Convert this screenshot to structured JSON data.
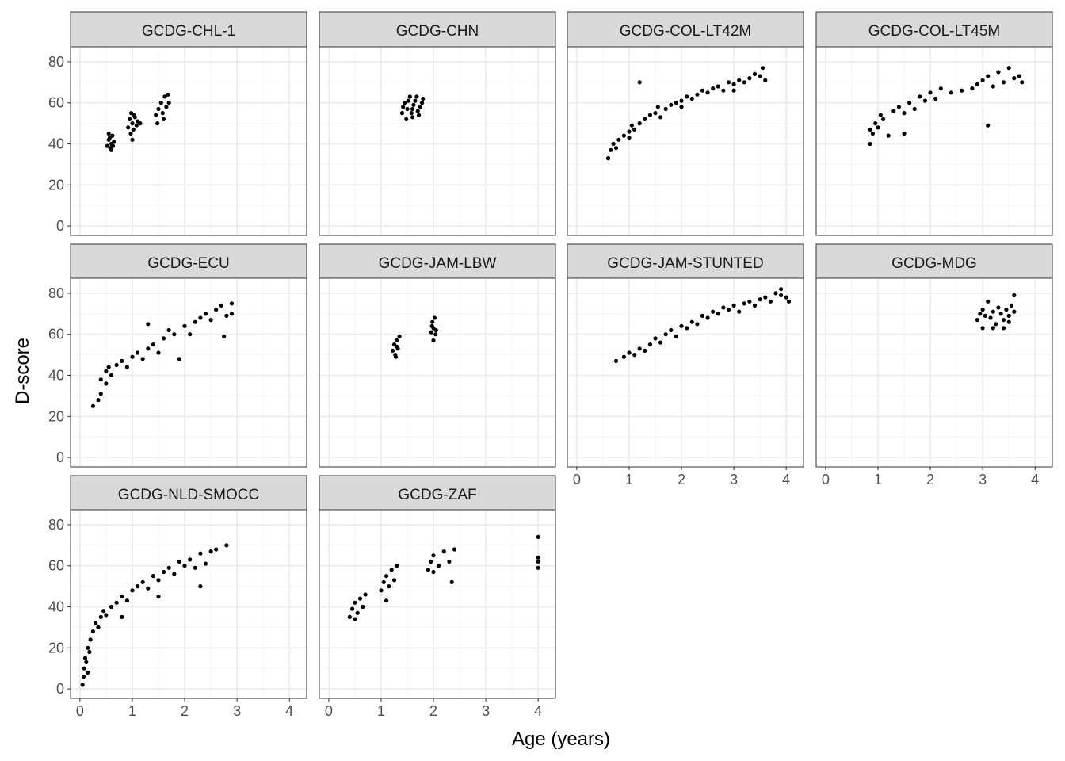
{
  "chart_data": {
    "type": "scatter",
    "layout": "faceted grid, 4 columns",
    "xlabel": "Age (years)",
    "ylabel": "D-score",
    "xlim": [
      -0.18,
      4.33
    ],
    "ylim": [
      -4.6,
      87.3
    ],
    "xticks": [
      0,
      1,
      2,
      3,
      4
    ],
    "yticks": [
      0,
      20,
      40,
      60,
      80
    ],
    "grid": true,
    "theme": "bw",
    "colors": {
      "point": "#000000",
      "strip": "#D9D9D9",
      "grid_major": "#EBEBEB",
      "grid_minor": "#F5F5F5",
      "border": "#333333"
    },
    "panels": [
      {
        "title": "GCDG-CHL-1",
        "points": [
          [
            0.52,
            39
          ],
          [
            0.55,
            42
          ],
          [
            0.58,
            38
          ],
          [
            0.6,
            40
          ],
          [
            0.62,
            44
          ],
          [
            0.55,
            45
          ],
          [
            0.6,
            37
          ],
          [
            0.65,
            41
          ],
          [
            0.57,
            43
          ],
          [
            0.63,
            39
          ],
          [
            0.92,
            48
          ],
          [
            0.95,
            52
          ],
          [
            0.98,
            55
          ],
          [
            1.0,
            50
          ],
          [
            1.02,
            47
          ],
          [
            1.05,
            53
          ],
          [
            1.08,
            49
          ],
          [
            1.1,
            51
          ],
          [
            1.0,
            42
          ],
          [
            0.97,
            45
          ],
          [
            1.15,
            50
          ],
          [
            1.03,
            54
          ],
          [
            1.45,
            54
          ],
          [
            1.5,
            57
          ],
          [
            1.55,
            60
          ],
          [
            1.6,
            52
          ],
          [
            1.62,
            63
          ],
          [
            1.65,
            58
          ],
          [
            1.7,
            60
          ],
          [
            1.48,
            50
          ],
          [
            1.58,
            55
          ],
          [
            1.68,
            64
          ]
        ]
      },
      {
        "title": "GCDG-CHN",
        "points": [
          [
            1.4,
            55
          ],
          [
            1.45,
            60
          ],
          [
            1.5,
            57
          ],
          [
            1.55,
            63
          ],
          [
            1.6,
            53
          ],
          [
            1.62,
            59
          ],
          [
            1.65,
            61
          ],
          [
            1.7,
            56
          ],
          [
            1.75,
            58
          ],
          [
            1.8,
            62
          ],
          [
            1.48,
            52
          ],
          [
            1.58,
            55
          ],
          [
            1.68,
            63
          ],
          [
            1.52,
            61
          ],
          [
            1.72,
            54
          ],
          [
            1.42,
            58
          ],
          [
            1.78,
            60
          ],
          [
            1.6,
            57
          ]
        ]
      },
      {
        "title": "GCDG-COL-LT42M",
        "points": [
          [
            0.6,
            33
          ],
          [
            0.65,
            37
          ],
          [
            0.7,
            40
          ],
          [
            0.75,
            38
          ],
          [
            0.8,
            42
          ],
          [
            0.9,
            44
          ],
          [
            1.0,
            46
          ],
          [
            1.05,
            49
          ],
          [
            1.1,
            47
          ],
          [
            1.2,
            50
          ],
          [
            1.3,
            52
          ],
          [
            1.4,
            54
          ],
          [
            1.5,
            55
          ],
          [
            1.55,
            58
          ],
          [
            1.6,
            53
          ],
          [
            1.7,
            57
          ],
          [
            1.8,
            59
          ],
          [
            1.9,
            60
          ],
          [
            2.0,
            61
          ],
          [
            2.1,
            63
          ],
          [
            2.2,
            62
          ],
          [
            2.3,
            64
          ],
          [
            2.4,
            66
          ],
          [
            2.5,
            65
          ],
          [
            2.6,
            67
          ],
          [
            2.7,
            68
          ],
          [
            2.8,
            66
          ],
          [
            2.9,
            70
          ],
          [
            3.0,
            69
          ],
          [
            3.1,
            71
          ],
          [
            3.2,
            70
          ],
          [
            3.3,
            72
          ],
          [
            3.4,
            74
          ],
          [
            3.5,
            73
          ],
          [
            3.55,
            77
          ],
          [
            3.6,
            71
          ],
          [
            1.2,
            70
          ],
          [
            1.0,
            43
          ],
          [
            2.0,
            58
          ],
          [
            3.0,
            66
          ]
        ]
      },
      {
        "title": "GCDG-COL-LT45M",
        "points": [
          [
            0.85,
            40
          ],
          [
            0.85,
            47
          ],
          [
            0.9,
            45
          ],
          [
            0.95,
            50
          ],
          [
            1.0,
            48
          ],
          [
            1.05,
            54
          ],
          [
            1.1,
            52
          ],
          [
            1.2,
            44
          ],
          [
            1.3,
            56
          ],
          [
            1.4,
            58
          ],
          [
            1.5,
            55
          ],
          [
            1.6,
            60
          ],
          [
            1.7,
            57
          ],
          [
            1.8,
            63
          ],
          [
            1.9,
            61
          ],
          [
            2.0,
            65
          ],
          [
            2.1,
            62
          ],
          [
            2.2,
            67
          ],
          [
            2.4,
            65
          ],
          [
            2.6,
            66
          ],
          [
            2.8,
            67
          ],
          [
            2.9,
            69
          ],
          [
            3.0,
            71
          ],
          [
            3.1,
            49
          ],
          [
            3.1,
            73
          ],
          [
            3.2,
            68
          ],
          [
            3.3,
            75
          ],
          [
            3.4,
            70
          ],
          [
            3.5,
            77
          ],
          [
            3.6,
            72
          ],
          [
            3.7,
            73
          ],
          [
            3.75,
            70
          ],
          [
            1.5,
            45
          ]
        ]
      },
      {
        "title": "GCDG-ECU",
        "points": [
          [
            0.25,
            25
          ],
          [
            0.35,
            28
          ],
          [
            0.4,
            31
          ],
          [
            0.4,
            38
          ],
          [
            0.5,
            36
          ],
          [
            0.5,
            42
          ],
          [
            0.55,
            44
          ],
          [
            0.6,
            40
          ],
          [
            0.7,
            45
          ],
          [
            0.8,
            47
          ],
          [
            0.9,
            44
          ],
          [
            1.0,
            49
          ],
          [
            1.1,
            51
          ],
          [
            1.2,
            48
          ],
          [
            1.3,
            53
          ],
          [
            1.4,
            55
          ],
          [
            1.5,
            51
          ],
          [
            1.6,
            58
          ],
          [
            1.7,
            62
          ],
          [
            1.8,
            60
          ],
          [
            1.9,
            48
          ],
          [
            2.0,
            64
          ],
          [
            2.1,
            60
          ],
          [
            2.2,
            66
          ],
          [
            2.3,
            68
          ],
          [
            2.4,
            70
          ],
          [
            2.5,
            67
          ],
          [
            2.6,
            72
          ],
          [
            2.7,
            74
          ],
          [
            2.8,
            69
          ],
          [
            2.9,
            70
          ],
          [
            2.9,
            75
          ],
          [
            2.75,
            59
          ],
          [
            1.3,
            65
          ]
        ]
      },
      {
        "title": "GCDG-JAM-LBW",
        "points": [
          [
            1.22,
            52
          ],
          [
            1.25,
            55
          ],
          [
            1.27,
            50
          ],
          [
            1.3,
            57
          ],
          [
            1.32,
            53
          ],
          [
            1.35,
            59
          ],
          [
            1.28,
            49
          ],
          [
            1.3,
            54
          ],
          [
            1.96,
            61
          ],
          [
            1.98,
            66
          ],
          [
            2.0,
            63
          ],
          [
            2.02,
            68
          ],
          [
            2.04,
            60
          ],
          [
            2.0,
            57
          ],
          [
            1.97,
            64
          ],
          [
            2.05,
            62
          ]
        ]
      },
      {
        "title": "GCDG-JAM-STUNTED",
        "points": [
          [
            0.75,
            47
          ],
          [
            0.9,
            49
          ],
          [
            1.0,
            51
          ],
          [
            1.1,
            50
          ],
          [
            1.2,
            53
          ],
          [
            1.3,
            52
          ],
          [
            1.4,
            55
          ],
          [
            1.5,
            58
          ],
          [
            1.6,
            56
          ],
          [
            1.7,
            60
          ],
          [
            1.8,
            62
          ],
          [
            1.9,
            59
          ],
          [
            2.0,
            64
          ],
          [
            2.1,
            63
          ],
          [
            2.2,
            66
          ],
          [
            2.3,
            65
          ],
          [
            2.4,
            69
          ],
          [
            2.5,
            68
          ],
          [
            2.6,
            71
          ],
          [
            2.7,
            70
          ],
          [
            2.8,
            73
          ],
          [
            2.9,
            72
          ],
          [
            3.0,
            74
          ],
          [
            3.1,
            71
          ],
          [
            3.2,
            75
          ],
          [
            3.3,
            76
          ],
          [
            3.4,
            74
          ],
          [
            3.5,
            77
          ],
          [
            3.6,
            78
          ],
          [
            3.7,
            76
          ],
          [
            3.8,
            80
          ],
          [
            3.9,
            79
          ],
          [
            4.0,
            78
          ],
          [
            3.9,
            82
          ],
          [
            4.05,
            76
          ]
        ]
      },
      {
        "title": "GCDG-MDG",
        "points": [
          [
            2.9,
            67
          ],
          [
            2.95,
            70
          ],
          [
            3.0,
            72
          ],
          [
            3.0,
            63
          ],
          [
            3.05,
            69
          ],
          [
            3.1,
            76
          ],
          [
            3.15,
            68
          ],
          [
            3.2,
            71
          ],
          [
            3.25,
            65
          ],
          [
            3.3,
            73
          ],
          [
            3.35,
            70
          ],
          [
            3.4,
            67
          ],
          [
            3.45,
            72
          ],
          [
            3.5,
            69
          ],
          [
            3.55,
            74
          ],
          [
            3.6,
            79
          ],
          [
            3.6,
            71
          ],
          [
            3.2,
            63
          ],
          [
            3.4,
            63
          ],
          [
            3.5,
            66
          ]
        ]
      },
      {
        "title": "GCDG-NLD-SMOCC",
        "points": [
          [
            0.05,
            2
          ],
          [
            0.07,
            6
          ],
          [
            0.08,
            10
          ],
          [
            0.1,
            15
          ],
          [
            0.12,
            13
          ],
          [
            0.15,
            20
          ],
          [
            0.18,
            18
          ],
          [
            0.2,
            24
          ],
          [
            0.25,
            28
          ],
          [
            0.3,
            32
          ],
          [
            0.35,
            30
          ],
          [
            0.4,
            35
          ],
          [
            0.45,
            38
          ],
          [
            0.5,
            36
          ],
          [
            0.6,
            40
          ],
          [
            0.7,
            42
          ],
          [
            0.8,
            45
          ],
          [
            0.9,
            43
          ],
          [
            1.0,
            48
          ],
          [
            1.1,
            50
          ],
          [
            1.2,
            52
          ],
          [
            1.3,
            49
          ],
          [
            1.4,
            55
          ],
          [
            1.5,
            53
          ],
          [
            1.6,
            57
          ],
          [
            1.7,
            59
          ],
          [
            1.8,
            56
          ],
          [
            1.9,
            62
          ],
          [
            2.0,
            60
          ],
          [
            2.1,
            63
          ],
          [
            2.2,
            59
          ],
          [
            2.3,
            66
          ],
          [
            2.4,
            61
          ],
          [
            2.5,
            67
          ],
          [
            2.6,
            68
          ],
          [
            2.8,
            70
          ],
          [
            0.8,
            35
          ],
          [
            1.5,
            45
          ],
          [
            2.3,
            50
          ],
          [
            0.15,
            8
          ]
        ]
      },
      {
        "title": "GCDG-ZAF",
        "points": [
          [
            0.4,
            35
          ],
          [
            0.45,
            39
          ],
          [
            0.5,
            42
          ],
          [
            0.55,
            37
          ],
          [
            0.6,
            44
          ],
          [
            0.65,
            40
          ],
          [
            0.7,
            46
          ],
          [
            0.5,
            34
          ],
          [
            1.0,
            48
          ],
          [
            1.05,
            52
          ],
          [
            1.1,
            55
          ],
          [
            1.15,
            50
          ],
          [
            1.2,
            58
          ],
          [
            1.25,
            53
          ],
          [
            1.3,
            60
          ],
          [
            1.1,
            43
          ],
          [
            1.9,
            58
          ],
          [
            1.95,
            62
          ],
          [
            2.0,
            65
          ],
          [
            2.1,
            60
          ],
          [
            2.2,
            67
          ],
          [
            2.3,
            62
          ],
          [
            2.4,
            68
          ],
          [
            2.35,
            52
          ],
          [
            2.0,
            57
          ],
          [
            4.0,
            59
          ],
          [
            4.0,
            62
          ],
          [
            4.0,
            64
          ],
          [
            4.0,
            74
          ]
        ]
      }
    ]
  }
}
